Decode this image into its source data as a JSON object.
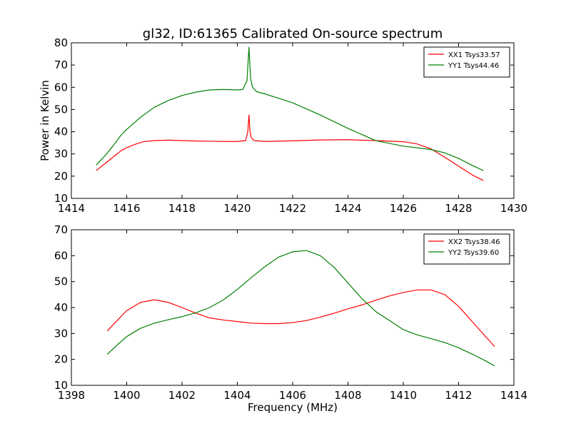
{
  "figure": {
    "title": "gl32, ID:61365 Calibrated On-source spectrum",
    "ylabel": "Power in Kelvin",
    "xlabel": "Frequency (MHz)"
  },
  "chart_data": [
    {
      "type": "line",
      "title": "gl32, ID:61365 Calibrated On-source spectrum",
      "xlabel": "",
      "ylabel": "Power in Kelvin",
      "xlim": [
        1414,
        1430
      ],
      "ylim": [
        10,
        80
      ],
      "xticks": [
        1414,
        1416,
        1418,
        1420,
        1422,
        1424,
        1426,
        1428,
        1430
      ],
      "yticks": [
        10,
        20,
        30,
        40,
        50,
        60,
        70,
        80
      ],
      "legend_position": "top-right",
      "series": [
        {
          "name": "XX1 Tsys33.57",
          "color": "#ff0000",
          "x": [
            1414.9,
            1415.2,
            1415.5,
            1415.8,
            1416.0,
            1416.3,
            1416.6,
            1417.0,
            1417.5,
            1418.0,
            1418.5,
            1419.0,
            1419.5,
            1420.0,
            1420.3,
            1420.38,
            1420.42,
            1420.46,
            1420.5,
            1420.6,
            1421.0,
            1422.0,
            1423.0,
            1424.0,
            1425.0,
            1426.0,
            1426.5,
            1427.0,
            1427.5,
            1428.0,
            1428.5,
            1428.9
          ],
          "y": [
            22.5,
            25.5,
            28.5,
            31.5,
            32.8,
            34.3,
            35.5,
            36.0,
            36.2,
            36.0,
            35.8,
            35.7,
            35.6,
            35.6,
            36.0,
            40.0,
            47.5,
            40.0,
            37.5,
            36.0,
            35.6,
            35.9,
            36.3,
            36.4,
            36.0,
            35.5,
            34.5,
            32.3,
            28.5,
            24.5,
            20.5,
            18.0
          ]
        },
        {
          "name": "YY1 Tsys44.46",
          "color": "#008000",
          "x": [
            1414.9,
            1415.2,
            1415.5,
            1415.8,
            1416.0,
            1416.5,
            1417.0,
            1417.5,
            1418.0,
            1418.5,
            1419.0,
            1419.5,
            1420.0,
            1420.2,
            1420.35,
            1420.42,
            1420.48,
            1420.55,
            1420.7,
            1421.0,
            1422.0,
            1423.0,
            1424.0,
            1425.0,
            1426.0,
            1427.0,
            1427.5,
            1428.0,
            1428.5,
            1428.9
          ],
          "y": [
            25.0,
            29.0,
            33.5,
            38.5,
            41.0,
            46.5,
            51.0,
            54.0,
            56.3,
            57.8,
            58.8,
            59.0,
            58.8,
            59.0,
            63.0,
            78.0,
            64.0,
            60.0,
            58.0,
            57.0,
            53.0,
            47.5,
            41.5,
            36.0,
            33.5,
            32.0,
            30.5,
            28.0,
            24.8,
            22.5
          ]
        }
      ]
    },
    {
      "type": "line",
      "title": "",
      "xlabel": "Frequency (MHz)",
      "ylabel": "",
      "xlim": [
        1398,
        1414
      ],
      "ylim": [
        10,
        70
      ],
      "xticks": [
        1398,
        1400,
        1402,
        1404,
        1406,
        1408,
        1410,
        1412,
        1414
      ],
      "yticks": [
        10,
        20,
        30,
        40,
        50,
        60,
        70
      ],
      "legend_position": "top-right",
      "series": [
        {
          "name": "XX2 Tsys38.46",
          "color": "#ff0000",
          "x": [
            1399.3,
            1399.7,
            1400.0,
            1400.5,
            1401.0,
            1401.5,
            1402.0,
            1402.5,
            1403.0,
            1403.5,
            1404.0,
            1404.5,
            1405.0,
            1405.5,
            1406.0,
            1406.5,
            1407.0,
            1407.5,
            1408.0,
            1408.5,
            1409.0,
            1409.5,
            1410.0,
            1410.5,
            1411.0,
            1411.5,
            1412.0,
            1412.5,
            1413.0,
            1413.3
          ],
          "y": [
            31.0,
            35.5,
            38.8,
            42.0,
            43.0,
            42.0,
            40.0,
            37.8,
            36.0,
            35.2,
            34.6,
            34.0,
            33.8,
            33.8,
            34.2,
            35.0,
            36.3,
            37.8,
            39.5,
            41.0,
            42.8,
            44.5,
            45.8,
            46.8,
            46.8,
            45.0,
            40.5,
            34.5,
            28.5,
            25.0
          ]
        },
        {
          "name": "YY2 Tsys39.60",
          "color": "#008000",
          "x": [
            1399.3,
            1399.7,
            1400.0,
            1400.5,
            1401.0,
            1401.5,
            1402.0,
            1402.5,
            1403.0,
            1403.5,
            1404.0,
            1404.5,
            1405.0,
            1405.5,
            1406.0,
            1406.5,
            1407.0,
            1407.5,
            1408.0,
            1408.5,
            1409.0,
            1409.5,
            1410.0,
            1410.5,
            1411.0,
            1411.5,
            1412.0,
            1412.5,
            1413.0,
            1413.3
          ],
          "y": [
            22.0,
            26.0,
            28.8,
            32.0,
            34.0,
            35.3,
            36.5,
            38.0,
            40.0,
            43.0,
            47.0,
            51.5,
            55.8,
            59.5,
            61.5,
            62.0,
            60.0,
            55.5,
            49.5,
            43.5,
            38.5,
            35.0,
            31.5,
            29.5,
            28.0,
            26.5,
            24.5,
            22.0,
            19.3,
            17.5
          ]
        }
      ]
    }
  ]
}
